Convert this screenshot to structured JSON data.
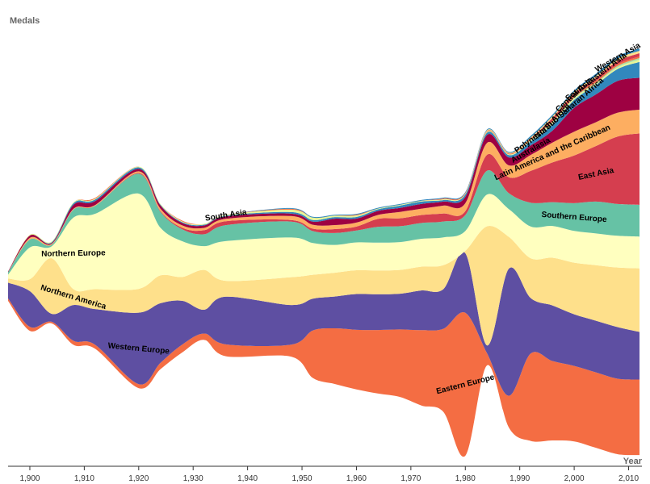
{
  "chart_data": {
    "type": "streamgraph",
    "y_label": "Medals",
    "x_label": "Year",
    "x": [
      1896,
      1900,
      1904,
      1908,
      1912,
      1920,
      1924,
      1928,
      1932,
      1936,
      1948,
      1952,
      1956,
      1960,
      1964,
      1968,
      1972,
      1976,
      1980,
      1984,
      1988,
      1992,
      1996,
      2000,
      2004,
      2008,
      2012
    ],
    "xlim": [
      1896,
      2012
    ],
    "xticks": [
      {
        "value": 1900,
        "label": "1,900"
      },
      {
        "value": 1910,
        "label": "1,910"
      },
      {
        "value": 1920,
        "label": "1,920"
      },
      {
        "value": 1930,
        "label": "1,930"
      },
      {
        "value": 1940,
        "label": "1,940"
      },
      {
        "value": 1950,
        "label": "1,950"
      },
      {
        "value": 1960,
        "label": "1,960"
      },
      {
        "value": 1970,
        "label": "1,970"
      },
      {
        "value": 1980,
        "label": "1,980"
      },
      {
        "value": 1990,
        "label": "1,990"
      },
      {
        "value": 2000,
        "label": "2,000"
      },
      {
        "value": 2010,
        "label": "2,010"
      }
    ],
    "series": [
      {
        "name": "Eastern Europe",
        "color": "#f46d43",
        "values": [
          3,
          5,
          2,
          5,
          5,
          5,
          8,
          10,
          8,
          15,
          15,
          60,
          70,
          75,
          80,
          85,
          95,
          105,
          180,
          15,
          40,
          110,
          100,
          95,
          95,
          95,
          95
        ]
      },
      {
        "name": "Western Europe",
        "color": "#5e4fa2",
        "values": [
          20,
          45,
          10,
          45,
          45,
          90,
          75,
          55,
          30,
          60,
          50,
          40,
          40,
          45,
          45,
          45,
          50,
          50,
          75,
          10,
          160,
          70,
          70,
          65,
          65,
          65,
          60
        ]
      },
      {
        "name": "Northern America",
        "color": "#fee08b",
        "values": [
          5,
          15,
          70,
          20,
          25,
          30,
          35,
          30,
          50,
          20,
          35,
          30,
          30,
          30,
          30,
          30,
          30,
          30,
          3,
          150,
          40,
          50,
          60,
          65,
          70,
          75,
          80
        ]
      },
      {
        "name": "Northern Europe",
        "color": "#ffffbf",
        "values": [
          5,
          40,
          15,
          90,
          95,
          120,
          60,
          45,
          30,
          50,
          50,
          40,
          35,
          35,
          35,
          35,
          35,
          35,
          25,
          40,
          35,
          40,
          40,
          40,
          40,
          40,
          40
        ]
      },
      {
        "name": "Southern Europe",
        "color": "#66c2a5",
        "values": [
          3,
          10,
          2,
          10,
          10,
          25,
          20,
          15,
          15,
          20,
          20,
          15,
          15,
          15,
          20,
          20,
          20,
          20,
          20,
          30,
          20,
          30,
          30,
          35,
          40,
          40,
          40
        ]
      },
      {
        "name": "East Asia",
        "color": "#d53e4f",
        "values": [
          0,
          0,
          0,
          0,
          0,
          1,
          1,
          2,
          5,
          5,
          2,
          3,
          5,
          5,
          10,
          10,
          10,
          10,
          5,
          20,
          20,
          40,
          50,
          60,
          70,
          85,
          90
        ]
      },
      {
        "name": "Latin America and the Caribbean",
        "color": "#fdae61",
        "values": [
          0,
          2,
          1,
          1,
          1,
          2,
          3,
          3,
          3,
          3,
          5,
          5,
          5,
          5,
          5,
          8,
          8,
          10,
          10,
          15,
          15,
          20,
          25,
          30,
          30,
          30,
          30
        ]
      },
      {
        "name": "Australasia",
        "color": "#9e0142",
        "values": [
          1,
          3,
          1,
          5,
          5,
          3,
          4,
          3,
          3,
          3,
          3,
          4,
          8,
          5,
          5,
          5,
          6,
          5,
          8,
          10,
          10,
          12,
          15,
          30,
          35,
          40,
          40
        ]
      },
      {
        "name": "Sub-Saharan Africa",
        "color": "#3288bd",
        "values": [
          0,
          0,
          1,
          2,
          2,
          2,
          1,
          1,
          1,
          1,
          2,
          2,
          2,
          2,
          2,
          3,
          3,
          2,
          3,
          3,
          3,
          5,
          8,
          10,
          12,
          15,
          20
        ]
      },
      {
        "name": "South Asia",
        "color": "#e6f598",
        "values": [
          0,
          1,
          1,
          1,
          1,
          1,
          1,
          1,
          1,
          1,
          3,
          3,
          2,
          2,
          1,
          1,
          1,
          1,
          1,
          1,
          1,
          1,
          2,
          2,
          2,
          2,
          3
        ]
      },
      {
        "name": "Polynesia",
        "color": "#abdda4",
        "values": [
          0,
          0,
          0,
          0,
          0,
          0,
          0,
          0,
          0,
          0,
          0,
          0,
          0,
          0,
          0,
          0,
          0,
          0,
          0,
          0,
          0,
          1,
          1,
          1,
          1,
          2,
          2
        ]
      },
      {
        "name": "North Africa",
        "color": "#f46d43",
        "values": [
          0,
          0,
          0,
          0,
          1,
          0,
          0,
          1,
          0,
          0,
          1,
          0,
          0,
          1,
          0,
          0,
          0,
          1,
          1,
          1,
          1,
          2,
          2,
          2,
          2,
          2,
          2
        ]
      },
      {
        "name": "Central Asia",
        "color": "#d53e4f",
        "values": [
          0,
          0,
          0,
          0,
          0,
          0,
          0,
          0,
          0,
          0,
          0,
          0,
          0,
          0,
          0,
          0,
          0,
          0,
          0,
          0,
          0,
          0,
          3,
          3,
          4,
          4,
          4
        ]
      },
      {
        "name": "South-Eastern Asia",
        "color": "#fee08b",
        "values": [
          0,
          0,
          0,
          0,
          0,
          0,
          0,
          0,
          0,
          0,
          0,
          0,
          0,
          0,
          0,
          0,
          0,
          0,
          0,
          1,
          1,
          1,
          2,
          2,
          2,
          3,
          3
        ]
      },
      {
        "name": "Western Asia",
        "color": "#3288bd",
        "values": [
          0,
          0,
          0,
          0,
          0,
          0,
          0,
          0,
          0,
          0,
          1,
          1,
          1,
          1,
          1,
          1,
          1,
          1,
          1,
          1,
          1,
          2,
          2,
          2,
          3,
          3,
          3
        ]
      }
    ]
  }
}
